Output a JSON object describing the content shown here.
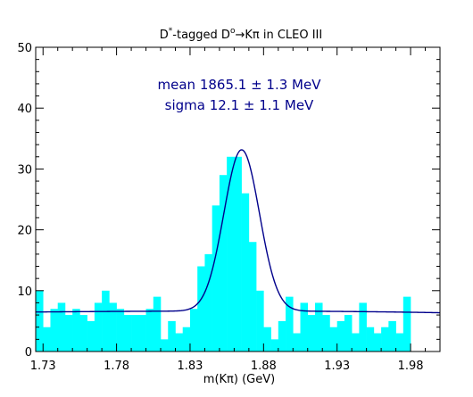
{
  "chart_data": {
    "type": "bar",
    "title": "D*-tagged D0→Kπ in CLEO III",
    "title_parts": {
      "a": "D",
      "a_sup": "*",
      "b": "-tagged D",
      "b_sup": "o",
      "c": "→Kπ in CLEO III"
    },
    "xlabel": "m(Kπ) (GeV)",
    "ylabel": "",
    "xlim": [
      1.725,
      2.0
    ],
    "ylim": [
      0,
      50
    ],
    "x_ticks": [
      "1.73",
      "1.78",
      "1.83",
      "1.88",
      "1.93",
      "1.98"
    ],
    "x_tick_values": [
      1.73,
      1.78,
      1.83,
      1.88,
      1.93,
      1.98
    ],
    "y_ticks": [
      "0",
      "10",
      "20",
      "30",
      "40",
      "50"
    ],
    "y_tick_values": [
      0,
      10,
      20,
      30,
      40,
      50
    ],
    "bin_width": 0.005,
    "bin_start": 1.725,
    "values": [
      10,
      4,
      7,
      8,
      6,
      7,
      6,
      5,
      8,
      10,
      8,
      7,
      6,
      6,
      6,
      7,
      9,
      2,
      5,
      3,
      4,
      7,
      14,
      16,
      24,
      29,
      32,
      32,
      26,
      18,
      10,
      4,
      2,
      5,
      9,
      3,
      8,
      6,
      8,
      6,
      4,
      5,
      6,
      3,
      8,
      4,
      3,
      4,
      5,
      3,
      9
    ],
    "fit": {
      "mean": 1.8651,
      "sigma": 0.0121,
      "amplitude": 26.5,
      "bg_a": 6.65,
      "bg_b": 0.0,
      "bg_c": -11.35,
      "bg_d": -2.0
    },
    "annotations": [
      "mean 1865.1 ± 1.3 MeV",
      "sigma 12.1 ± 1.1 MeV"
    ],
    "colors": {
      "histogram": "#00ffff",
      "fit": "#00008b",
      "annotation": "#00008b"
    },
    "grid": false
  }
}
